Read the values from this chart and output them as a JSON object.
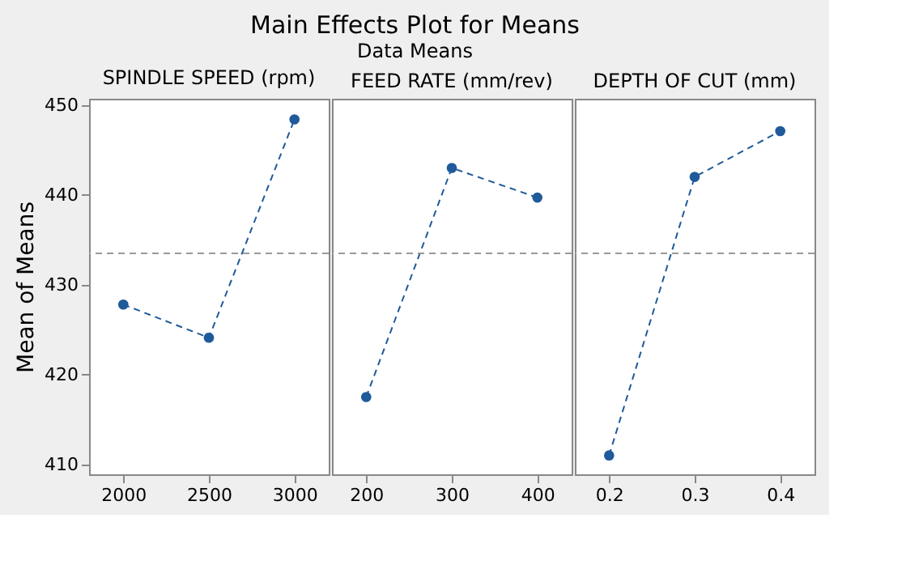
{
  "chart_data": [
    {
      "type": "line",
      "title": "SPINDLE SPEED (rpm)",
      "annotations": [
        "Main Effects Plot for Means",
        "Data Means"
      ],
      "ylabel": "Mean of Means",
      "categories": [
        "2000",
        "2500",
        "3000"
      ],
      "series": [
        {
          "color": "#1f5a9a",
          "values": [
            427.8,
            424.1,
            448.4
          ]
        }
      ],
      "ylim": [
        408.9,
        450.7
      ],
      "yticks": [
        410,
        420,
        430,
        440,
        450
      ],
      "ref_lines": [
        {
          "axis": "y",
          "value": 433.5,
          "color": "#9a9a9a",
          "line_style": "dashed"
        }
      ],
      "marker": "circle",
      "line_style": "dashed",
      "grid": false
    },
    {
      "type": "line",
      "title": "FEED RATE (mm/rev)",
      "categories": [
        "200",
        "300",
        "400"
      ],
      "series": [
        {
          "color": "#1f5a9a",
          "values": [
            417.5,
            443.0,
            439.7
          ]
        }
      ],
      "ylim": [
        408.9,
        450.7
      ],
      "tick_labels": "x",
      "ref_lines": [
        {
          "axis": "y",
          "value": 433.5,
          "color": "#9a9a9a",
          "line_style": "dashed"
        }
      ],
      "marker": "circle",
      "line_style": "dashed",
      "grid": false
    },
    {
      "type": "line",
      "title": "DEPTH OF CUT (mm)",
      "categories": [
        "0.2",
        "0.3",
        "0.4"
      ],
      "series": [
        {
          "color": "#1f5a9a",
          "values": [
            411.0,
            442.0,
            447.1
          ]
        }
      ],
      "ylim": [
        408.9,
        450.7
      ],
      "tick_labels": "x",
      "ref_lines": [
        {
          "axis": "y",
          "value": 433.5,
          "color": "#9a9a9a",
          "line_style": "dashed"
        }
      ],
      "marker": "circle",
      "line_style": "dashed",
      "grid": false
    }
  ]
}
